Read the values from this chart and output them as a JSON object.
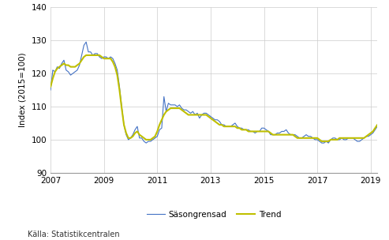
{
  "title": "",
  "ylabel": "Index (2015=100)",
  "xlabel": "",
  "xlim": [
    2007.0,
    2019.25
  ],
  "ylim": [
    90,
    140
  ],
  "yticks": [
    90,
    100,
    110,
    120,
    130,
    140
  ],
  "xticks": [
    2007,
    2009,
    2011,
    2013,
    2015,
    2017,
    2019
  ],
  "xticklabels": [
    "2007",
    "2009",
    "2011",
    "2013",
    "2015",
    "2017",
    "2019"
  ],
  "color_seas": "#4472C4",
  "color_trend": "#BFBF00",
  "legend_labels": [
    "Säsongrensad",
    "Trend"
  ],
  "source_text": "Källa: Statistikcentralen",
  "background_color": "#ffffff",
  "seas_adj": [
    115.0,
    121.0,
    120.5,
    122.0,
    121.5,
    123.0,
    124.0,
    121.0,
    120.5,
    119.5,
    120.0,
    120.5,
    121.0,
    122.5,
    125.5,
    128.5,
    129.5,
    126.5,
    126.5,
    125.5,
    126.0,
    126.0,
    125.0,
    124.5,
    125.0,
    125.0,
    124.5,
    125.0,
    124.5,
    123.0,
    121.0,
    116.0,
    110.0,
    104.5,
    101.5,
    100.0,
    100.5,
    101.5,
    103.0,
    104.0,
    100.5,
    100.5,
    99.5,
    99.0,
    99.5,
    99.5,
    100.0,
    100.5,
    101.0,
    103.0,
    103.5,
    113.0,
    108.5,
    111.0,
    110.5,
    110.5,
    110.5,
    110.0,
    110.5,
    109.5,
    109.0,
    109.0,
    108.5,
    108.0,
    108.5,
    107.5,
    108.0,
    106.5,
    107.5,
    108.0,
    108.0,
    107.5,
    107.0,
    106.5,
    106.0,
    106.0,
    105.5,
    104.5,
    104.5,
    104.0,
    104.0,
    104.0,
    104.5,
    105.0,
    104.0,
    103.5,
    103.5,
    103.0,
    103.0,
    103.0,
    102.5,
    102.5,
    102.0,
    102.5,
    102.5,
    103.5,
    103.5,
    103.0,
    102.5,
    101.5,
    101.5,
    101.5,
    102.0,
    102.0,
    102.5,
    102.5,
    103.0,
    102.0,
    101.5,
    101.5,
    101.5,
    101.0,
    100.5,
    100.5,
    101.0,
    101.5,
    101.0,
    101.0,
    100.5,
    100.0,
    100.0,
    99.5,
    99.0,
    99.0,
    99.5,
    99.0,
    100.0,
    100.5,
    100.5,
    100.0,
    100.0,
    100.5,
    100.0,
    100.0,
    100.5,
    100.5,
    100.5,
    100.0,
    99.5,
    99.5,
    100.0,
    100.5,
    101.0,
    101.0,
    101.5,
    102.0,
    103.0,
    104.0,
    104.5,
    105.0,
    106.0,
    106.5,
    104.5,
    104.0,
    104.5,
    105.5,
    106.5,
    107.5,
    108.0,
    107.5,
    108.0,
    108.5,
    108.5,
    108.0,
    108.5,
    108.5,
    109.5,
    110.0,
    110.5,
    111.0,
    112.5,
    113.0,
    112.5,
    113.0,
    113.5,
    113.0,
    113.5,
    114.5,
    115.0,
    115.5
  ],
  "trend": [
    116.0,
    118.5,
    120.5,
    121.5,
    122.0,
    122.5,
    123.0,
    122.5,
    122.5,
    122.0,
    122.0,
    122.0,
    122.5,
    123.0,
    124.0,
    125.0,
    125.5,
    125.5,
    125.5,
    125.5,
    125.5,
    125.5,
    125.5,
    125.0,
    124.5,
    124.5,
    124.5,
    124.5,
    123.5,
    122.0,
    119.5,
    115.0,
    109.5,
    104.5,
    102.0,
    100.5,
    100.5,
    101.0,
    102.0,
    102.5,
    101.5,
    101.0,
    100.5,
    100.0,
    100.0,
    100.0,
    100.5,
    101.0,
    102.5,
    104.5,
    106.0,
    107.5,
    108.5,
    109.0,
    109.5,
    109.5,
    109.5,
    109.5,
    109.5,
    109.0,
    108.5,
    108.0,
    107.5,
    107.5,
    107.5,
    107.5,
    107.5,
    107.5,
    107.5,
    107.5,
    107.5,
    107.0,
    106.5,
    106.0,
    105.5,
    105.0,
    104.5,
    104.5,
    104.0,
    104.0,
    104.0,
    104.0,
    104.0,
    104.0,
    103.5,
    103.5,
    103.0,
    103.0,
    103.0,
    102.5,
    102.5,
    102.5,
    102.5,
    102.5,
    102.5,
    102.5,
    102.5,
    102.5,
    102.5,
    102.0,
    101.5,
    101.5,
    101.5,
    101.5,
    101.5,
    101.5,
    101.5,
    101.5,
    101.5,
    101.5,
    101.0,
    100.5,
    100.5,
    100.5,
    100.5,
    100.5,
    100.5,
    100.5,
    100.5,
    100.5,
    100.5,
    100.0,
    99.5,
    99.5,
    99.5,
    99.5,
    100.0,
    100.0,
    100.0,
    100.0,
    100.5,
    100.5,
    100.5,
    100.5,
    100.5,
    100.5,
    100.5,
    100.5,
    100.5,
    100.5,
    100.5,
    100.5,
    101.0,
    101.5,
    102.0,
    102.5,
    103.5,
    104.5,
    105.0,
    105.5,
    106.0,
    106.0,
    105.5,
    105.5,
    106.0,
    106.5,
    107.5,
    108.0,
    108.5,
    108.5,
    108.5,
    108.5,
    108.5,
    108.5,
    109.0,
    109.5,
    110.0,
    110.5,
    111.0,
    111.5,
    112.5,
    113.0,
    113.0,
    113.0,
    113.5,
    113.5,
    114.0,
    114.5,
    115.0,
    115.5
  ]
}
